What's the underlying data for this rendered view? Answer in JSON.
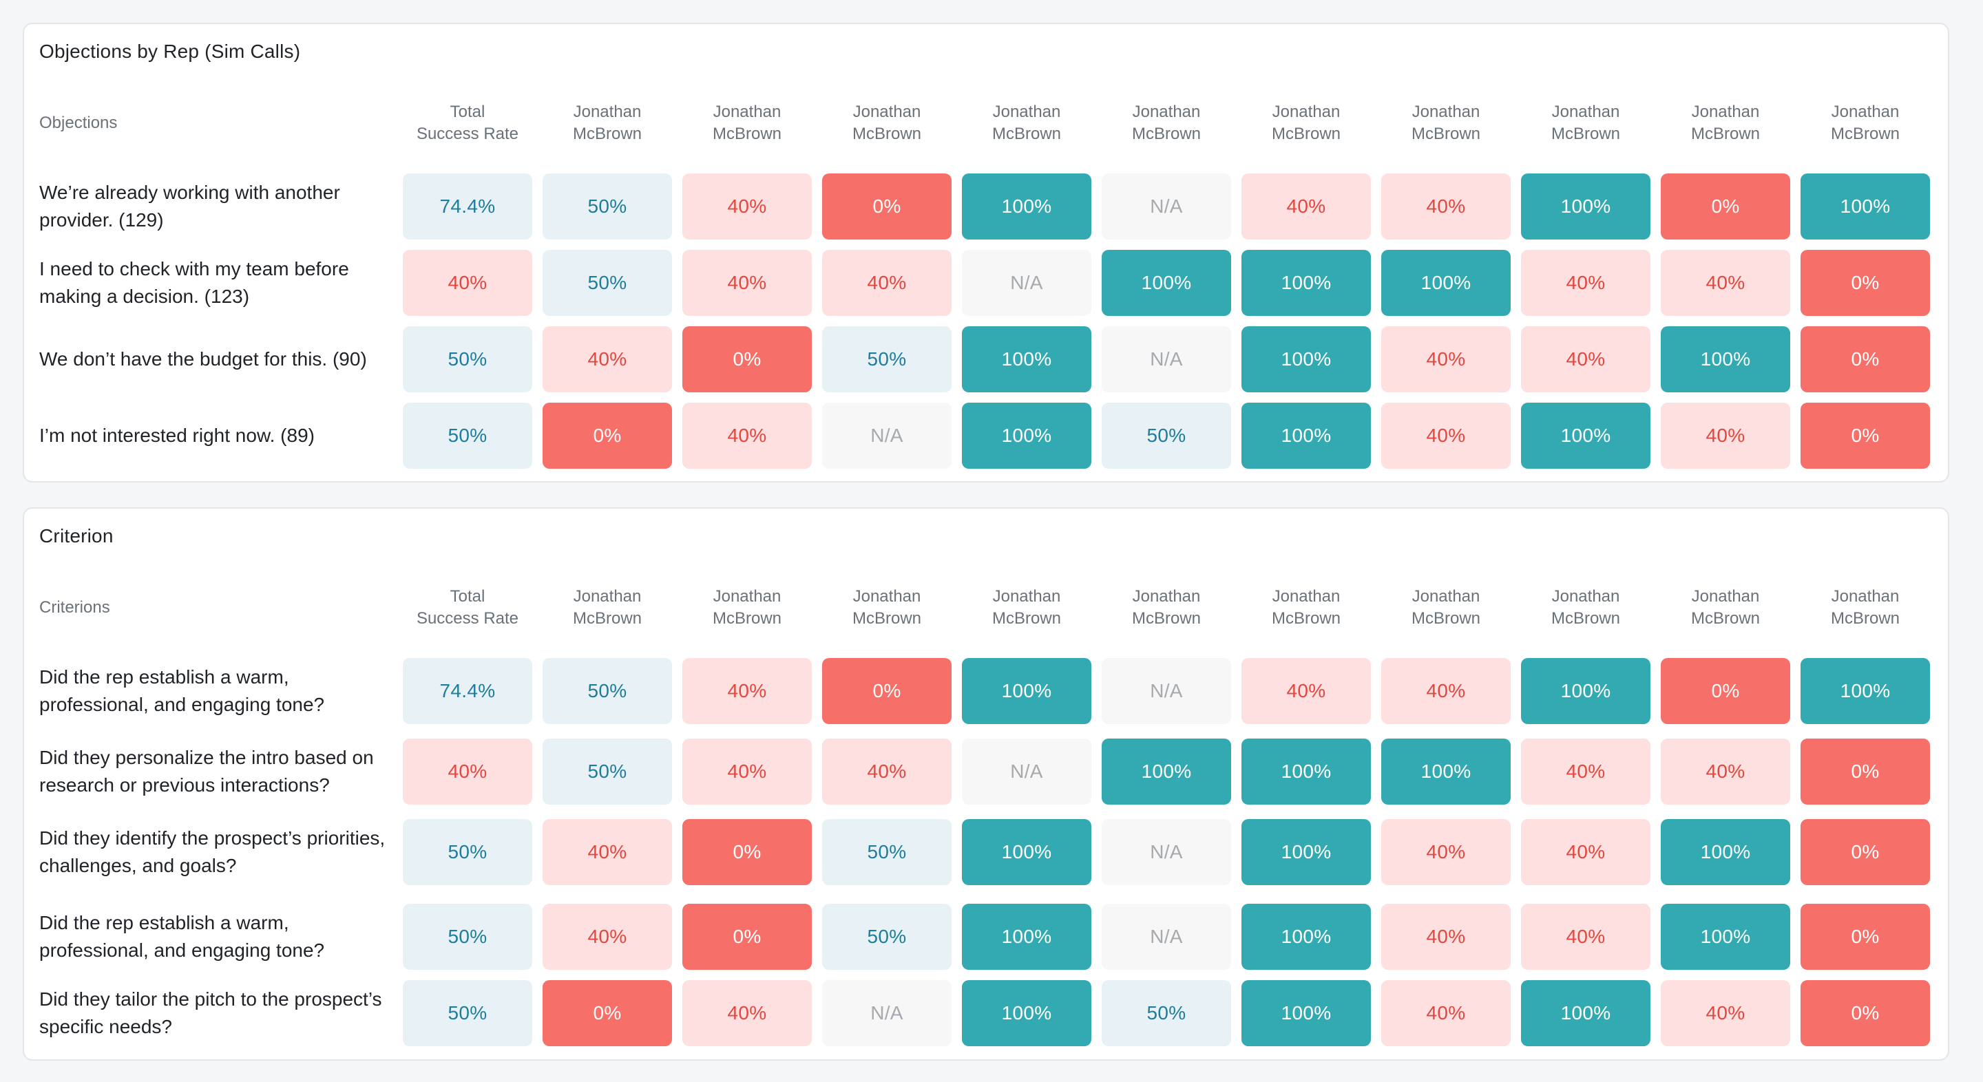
{
  "colors": {
    "teal": "#33aab2",
    "red": "#f76f69",
    "pink": "#fde0df",
    "light_blue": "#e8f1f5",
    "na_gray": "#f7f7f7"
  },
  "sections": [
    {
      "title": "Objections by Rep (Sim Calls)",
      "row_header": "Objections",
      "columns": [
        "Total\nSuccess Rate",
        "Jonathan\nMcBrown",
        "Jonathan\nMcBrown",
        "Jonathan\nMcBrown",
        "Jonathan\nMcBrown",
        "Jonathan\nMcBrown",
        "Jonathan\nMcBrown",
        "Jonathan\nMcBrown",
        "Jonathan\nMcBrown",
        "Jonathan\nMcBrown",
        "Jonathan\nMcBrown"
      ],
      "rows": [
        {
          "label": "We’re already working with another provider. (129)",
          "cells": [
            {
              "text": "74.4%",
              "level": "blue"
            },
            {
              "text": "50%",
              "level": "blue"
            },
            {
              "text": "40%",
              "level": "pink"
            },
            {
              "text": "0%",
              "level": "red"
            },
            {
              "text": "100%",
              "level": "teal"
            },
            {
              "text": "N/A",
              "level": "na"
            },
            {
              "text": "40%",
              "level": "pink"
            },
            {
              "text": "40%",
              "level": "pink"
            },
            {
              "text": "100%",
              "level": "teal"
            },
            {
              "text": "0%",
              "level": "red"
            },
            {
              "text": "100%",
              "level": "teal"
            }
          ]
        },
        {
          "label": "I need to check with my team before making a decision. (123)",
          "cells": [
            {
              "text": "40%",
              "level": "pink"
            },
            {
              "text": "50%",
              "level": "blue"
            },
            {
              "text": "40%",
              "level": "pink"
            },
            {
              "text": "40%",
              "level": "pink"
            },
            {
              "text": "N/A",
              "level": "na"
            },
            {
              "text": "100%",
              "level": "teal"
            },
            {
              "text": "100%",
              "level": "teal"
            },
            {
              "text": "100%",
              "level": "teal"
            },
            {
              "text": "40%",
              "level": "pink"
            },
            {
              "text": "40%",
              "level": "pink"
            },
            {
              "text": "0%",
              "level": "red"
            }
          ]
        },
        {
          "label": "We don’t have the budget for this. (90)",
          "cells": [
            {
              "text": "50%",
              "level": "blue"
            },
            {
              "text": "40%",
              "level": "pink"
            },
            {
              "text": "0%",
              "level": "red"
            },
            {
              "text": "50%",
              "level": "blue"
            },
            {
              "text": "100%",
              "level": "teal"
            },
            {
              "text": "N/A",
              "level": "na"
            },
            {
              "text": "100%",
              "level": "teal"
            },
            {
              "text": "40%",
              "level": "pink"
            },
            {
              "text": "40%",
              "level": "pink"
            },
            {
              "text": "100%",
              "level": "teal"
            },
            {
              "text": "0%",
              "level": "red"
            }
          ]
        },
        {
          "label": "I’m not interested right now. (89)",
          "cells": [
            {
              "text": "50%",
              "level": "blue"
            },
            {
              "text": "0%",
              "level": "red"
            },
            {
              "text": "40%",
              "level": "pink"
            },
            {
              "text": "N/A",
              "level": "na"
            },
            {
              "text": "100%",
              "level": "teal"
            },
            {
              "text": "50%",
              "level": "blue"
            },
            {
              "text": "100%",
              "level": "teal"
            },
            {
              "text": "40%",
              "level": "pink"
            },
            {
              "text": "100%",
              "level": "teal"
            },
            {
              "text": "40%",
              "level": "pink"
            },
            {
              "text": "0%",
              "level": "red"
            }
          ]
        }
      ]
    },
    {
      "title": "Criterion",
      "row_header": "Criterions",
      "columns": [
        "Total\nSuccess Rate",
        "Jonathan\nMcBrown",
        "Jonathan\nMcBrown",
        "Jonathan\nMcBrown",
        "Jonathan\nMcBrown",
        "Jonathan\nMcBrown",
        "Jonathan\nMcBrown",
        "Jonathan\nMcBrown",
        "Jonathan\nMcBrown",
        "Jonathan\nMcBrown",
        "Jonathan\nMcBrown"
      ],
      "rows": [
        {
          "label": "Did the rep establish a warm, professional, and engaging tone?",
          "cells": [
            {
              "text": "74.4%",
              "level": "blue"
            },
            {
              "text": "50%",
              "level": "blue"
            },
            {
              "text": "40%",
              "level": "pink"
            },
            {
              "text": "0%",
              "level": "red"
            },
            {
              "text": "100%",
              "level": "teal"
            },
            {
              "text": "N/A",
              "level": "na"
            },
            {
              "text": "40%",
              "level": "pink"
            },
            {
              "text": "40%",
              "level": "pink"
            },
            {
              "text": "100%",
              "level": "teal"
            },
            {
              "text": "0%",
              "level": "red"
            },
            {
              "text": "100%",
              "level": "teal"
            }
          ]
        },
        {
          "label": "Did they personalize the intro based on research or previous interactions?",
          "cells": [
            {
              "text": "40%",
              "level": "pink"
            },
            {
              "text": "50%",
              "level": "blue"
            },
            {
              "text": "40%",
              "level": "pink"
            },
            {
              "text": "40%",
              "level": "pink"
            },
            {
              "text": "N/A",
              "level": "na"
            },
            {
              "text": "100%",
              "level": "teal"
            },
            {
              "text": "100%",
              "level": "teal"
            },
            {
              "text": "100%",
              "level": "teal"
            },
            {
              "text": "40%",
              "level": "pink"
            },
            {
              "text": "40%",
              "level": "pink"
            },
            {
              "text": "0%",
              "level": "red"
            }
          ]
        },
        {
          "label": "Did they identify the prospect’s priorities, challenges, and goals?",
          "cells": [
            {
              "text": "50%",
              "level": "blue"
            },
            {
              "text": "40%",
              "level": "pink"
            },
            {
              "text": "0%",
              "level": "red"
            },
            {
              "text": "50%",
              "level": "blue"
            },
            {
              "text": "100%",
              "level": "teal"
            },
            {
              "text": "N/A",
              "level": "na"
            },
            {
              "text": "100%",
              "level": "teal"
            },
            {
              "text": "40%",
              "level": "pink"
            },
            {
              "text": "40%",
              "level": "pink"
            },
            {
              "text": "100%",
              "level": "teal"
            },
            {
              "text": "0%",
              "level": "red"
            }
          ]
        },
        {
          "label": "Did the rep establish a warm, professional, and engaging tone?",
          "cells": [
            {
              "text": "50%",
              "level": "blue"
            },
            {
              "text": "40%",
              "level": "pink"
            },
            {
              "text": "0%",
              "level": "red"
            },
            {
              "text": "50%",
              "level": "blue"
            },
            {
              "text": "100%",
              "level": "teal"
            },
            {
              "text": "N/A",
              "level": "na"
            },
            {
              "text": "100%",
              "level": "teal"
            },
            {
              "text": "40%",
              "level": "pink"
            },
            {
              "text": "40%",
              "level": "pink"
            },
            {
              "text": "100%",
              "level": "teal"
            },
            {
              "text": "0%",
              "level": "red"
            }
          ]
        },
        {
          "label": "Did they tailor the pitch to the prospect’s specific needs?",
          "cells": [
            {
              "text": "50%",
              "level": "blue"
            },
            {
              "text": "0%",
              "level": "red"
            },
            {
              "text": "40%",
              "level": "pink"
            },
            {
              "text": "N/A",
              "level": "na"
            },
            {
              "text": "100%",
              "level": "teal"
            },
            {
              "text": "50%",
              "level": "blue"
            },
            {
              "text": "100%",
              "level": "teal"
            },
            {
              "text": "40%",
              "level": "pink"
            },
            {
              "text": "100%",
              "level": "teal"
            },
            {
              "text": "40%",
              "level": "pink"
            },
            {
              "text": "0%",
              "level": "red"
            }
          ]
        }
      ]
    }
  ]
}
